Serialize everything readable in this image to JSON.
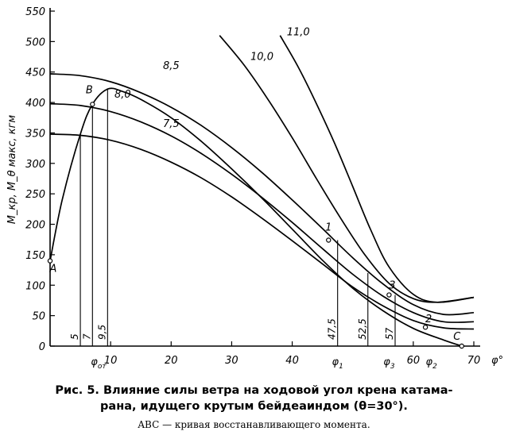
{
  "chart_data": {
    "type": "line",
    "ylabel": "M_кр, M_θ макс, кгм",
    "xlabel": "φ°",
    "xlim": [
      0,
      70
    ],
    "ylim": [
      0,
      550
    ],
    "x_ticks": [
      {
        "value": 10,
        "label": "10"
      },
      {
        "value": 20,
        "label": "20"
      },
      {
        "value": 30,
        "label": "30"
      },
      {
        "value": 40,
        "label": "40"
      },
      {
        "value": 60,
        "label": "60"
      },
      {
        "value": 70,
        "label": "70"
      }
    ],
    "y_ticks": [
      0,
      50,
      100,
      150,
      200,
      250,
      300,
      350,
      400,
      450,
      500,
      550
    ],
    "series": [
      {
        "name": "7,5",
        "x": [
          0,
          5,
          10,
          15,
          20,
          25,
          30,
          35,
          40,
          45,
          50,
          55,
          60,
          65,
          70
        ],
        "y": [
          348,
          346,
          338,
          323,
          302,
          276,
          245,
          210,
          173,
          135,
          97,
          66,
          42,
          30,
          28
        ]
      },
      {
        "name": "8,0",
        "x": [
          0,
          5,
          10,
          15,
          20,
          25,
          30,
          35,
          40,
          45,
          50,
          55,
          60,
          65,
          70
        ],
        "y": [
          398,
          395,
          385,
          368,
          345,
          316,
          282,
          244,
          203,
          160,
          118,
          82,
          55,
          40,
          40
        ]
      },
      {
        "name": "8,5",
        "x": [
          0,
          5,
          10,
          15,
          20,
          25,
          30,
          35,
          40,
          45,
          50,
          55,
          60,
          65,
          70
        ],
        "y": [
          447,
          444,
          434,
          416,
          392,
          362,
          326,
          285,
          240,
          193,
          145,
          102,
          68,
          52,
          55
        ]
      },
      {
        "name": "10,0",
        "x": [
          28,
          32,
          36,
          40,
          44,
          48,
          52,
          56,
          60,
          64,
          70
        ],
        "y": [
          510,
          462,
          405,
          342,
          275,
          210,
          150,
          103,
          78,
          72,
          80
        ]
      },
      {
        "name": "11,0",
        "x": [
          38,
          41,
          44,
          47,
          50,
          53,
          56,
          60,
          64,
          70
        ],
        "y": [
          510,
          458,
          398,
          333,
          262,
          190,
          130,
          85,
          72,
          80
        ]
      }
    ],
    "restoring_curve": {
      "name": "ABC",
      "x": [
        0,
        2,
        5,
        7,
        9.5,
        12,
        15,
        20,
        25,
        30,
        35,
        40,
        45,
        50,
        55,
        60,
        65,
        68
      ],
      "y": [
        140,
        240,
        348,
        397,
        422,
        418,
        405,
        375,
        336,
        291,
        243,
        192,
        141,
        95,
        58,
        29,
        10,
        0
      ]
    },
    "points": [
      {
        "label": "A",
        "x": 0,
        "y": 140
      },
      {
        "label": "B",
        "x": 7,
        "y": 397
      },
      {
        "label": "C",
        "x": 68,
        "y": 0
      },
      {
        "label": "1",
        "x": 46,
        "y": 174
      },
      {
        "label": "2",
        "x": 62,
        "y": 31
      },
      {
        "label": "3",
        "x": 56,
        "y": 84
      }
    ],
    "drop_lines": [
      {
        "x": 5,
        "y": 348,
        "label": "5"
      },
      {
        "x": 7,
        "y": 397,
        "label": "7"
      },
      {
        "x": 9.5,
        "y": 422,
        "label": "9,5"
      },
      {
        "x": 47.5,
        "y": 174,
        "label": "47,5"
      },
      {
        "x": 52.5,
        "y": 120,
        "label": "52,5"
      },
      {
        "x": 57,
        "y": 84,
        "label": "57"
      }
    ],
    "phi_labels": [
      {
        "x": 8,
        "sym": "φ",
        "sub": "от"
      },
      {
        "x": 47.5,
        "sym": "φ",
        "sub": "1"
      },
      {
        "x": 56,
        "sym": "φ",
        "sub": "3"
      },
      {
        "x": 63,
        "sym": "φ",
        "sub": "2"
      }
    ]
  },
  "caption": {
    "line1": "Рис. 5. Влияние силы ветра на ходовой угол крена катама-",
    "line2": "рана, идущего крутым бейдеаиндом (θ=30°).",
    "sub": "ABC — кривая восстанавливающего момента."
  }
}
